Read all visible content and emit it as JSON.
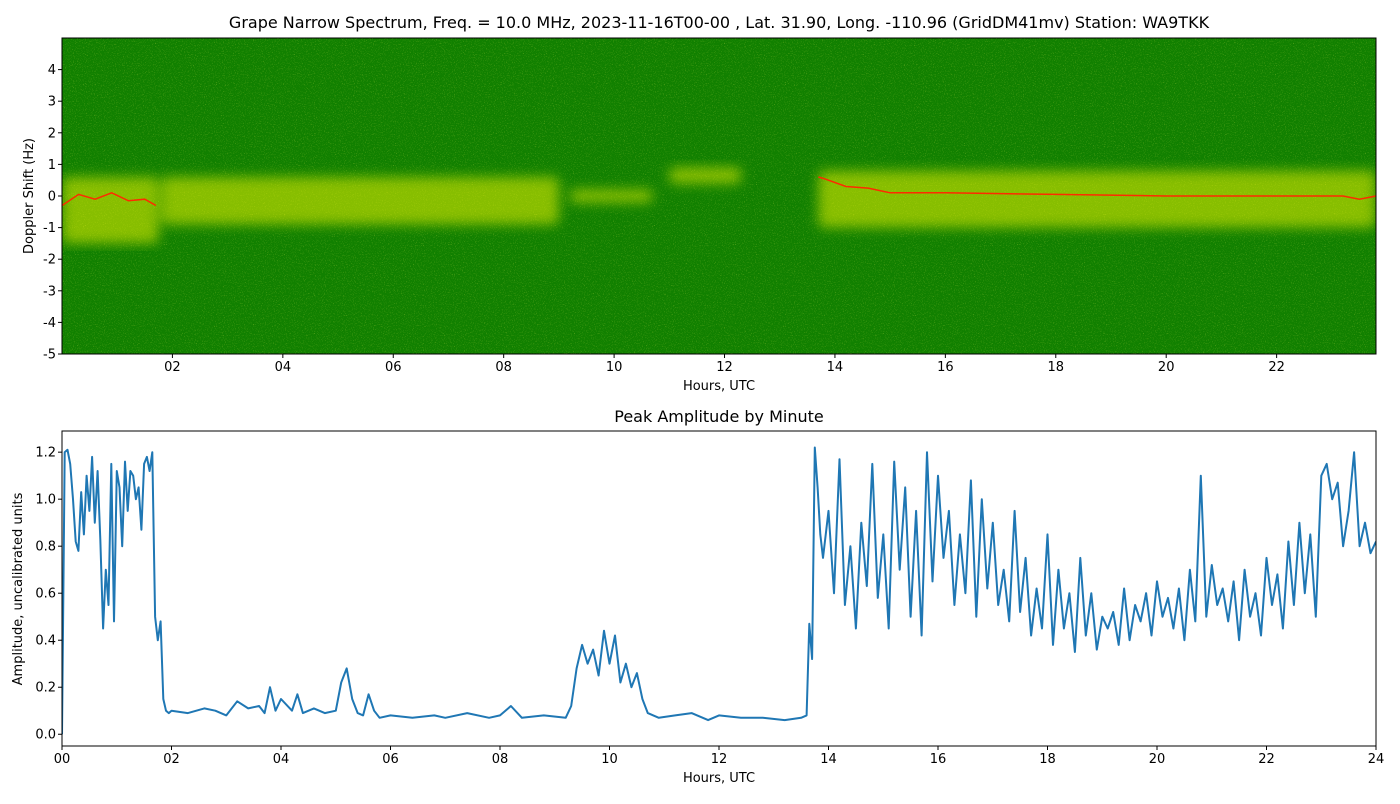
{
  "chart_data": [
    {
      "type": "heatmap",
      "title": "Grape Narrow Spectrum, Freq. = 10.0 MHz, 2023-11-16T00-00 , Lat.  31.90, Long. -110.96 (GridDM41mv) Station: WA9TKK",
      "xlabel": "Hours, UTC",
      "ylabel": "Doppler Shift (Hz)",
      "xlim": [
        0,
        23.8
      ],
      "ylim": [
        -5,
        5
      ],
      "x_ticks": [
        {
          "value": 2,
          "label": "02"
        },
        {
          "value": 4,
          "label": "04"
        },
        {
          "value": 6,
          "label": "06"
        },
        {
          "value": 8,
          "label": "08"
        },
        {
          "value": 10,
          "label": "10"
        },
        {
          "value": 12,
          "label": "12"
        },
        {
          "value": 14,
          "label": "14"
        },
        {
          "value": 16,
          "label": "16"
        },
        {
          "value": 18,
          "label": "18"
        },
        {
          "value": 20,
          "label": "20"
        },
        {
          "value": 22,
          "label": "22"
        }
      ],
      "y_ticks": [
        {
          "value": -5,
          "label": "-5"
        },
        {
          "value": -4,
          "label": "-4"
        },
        {
          "value": -3,
          "label": "-3"
        },
        {
          "value": -2,
          "label": "-2"
        },
        {
          "value": -1,
          "label": "-1"
        },
        {
          "value": 0,
          "label": "0"
        },
        {
          "value": 1,
          "label": "1"
        },
        {
          "value": 2,
          "label": "2"
        },
        {
          "value": 3,
          "label": "3"
        },
        {
          "value": 4,
          "label": "4"
        }
      ],
      "colors": {
        "background": "#118000",
        "signal": "#e8f000",
        "peak_trace": "#ff2a00"
      },
      "trace": {
        "x": [
          0.0,
          0.3,
          0.6,
          0.9,
          1.2,
          1.5,
          1.7,
          1.75,
          4.0,
          6.0,
          8.0,
          9.3,
          10.0,
          10.6,
          11.0,
          12.0,
          13.0,
          13.7,
          13.8,
          14.2,
          14.6,
          15.0,
          16.0,
          18.0,
          20.0,
          22.0,
          23.2,
          23.5,
          23.8
        ],
        "y": [
          -0.3,
          0.05,
          -0.1,
          0.1,
          -0.15,
          -0.1,
          -0.3,
          null,
          null,
          null,
          null,
          null,
          null,
          null,
          null,
          null,
          null,
          0.6,
          0.55,
          0.3,
          0.25,
          0.1,
          0.1,
          0.05,
          0.0,
          0.0,
          0.0,
          -0.1,
          0.0
        ]
      },
      "signal_regions": [
        {
          "x": [
            0.0,
            1.75
          ],
          "y": [
            -1.5,
            0.6
          ]
        },
        {
          "x": [
            1.8,
            9.0
          ],
          "y": [
            -0.9,
            0.6
          ]
        },
        {
          "x": [
            9.2,
            10.7
          ],
          "y": [
            -0.2,
            0.2
          ]
        },
        {
          "x": [
            11.0,
            12.3
          ],
          "y": [
            0.4,
            0.9
          ]
        },
        {
          "x": [
            13.7,
            23.8
          ],
          "y": [
            -1.0,
            0.8
          ]
        }
      ]
    },
    {
      "type": "line",
      "title": "Peak Amplitude by Minute",
      "xlabel": "Hours, UTC",
      "ylabel": "Amplitude, uncalibrated units",
      "xlim": [
        0,
        24
      ],
      "ylim": [
        -0.05,
        1.29
      ],
      "x_ticks": [
        {
          "value": 0,
          "label": "00"
        },
        {
          "value": 2,
          "label": "02"
        },
        {
          "value": 4,
          "label": "04"
        },
        {
          "value": 6,
          "label": "06"
        },
        {
          "value": 8,
          "label": "08"
        },
        {
          "value": 10,
          "label": "10"
        },
        {
          "value": 12,
          "label": "12"
        },
        {
          "value": 14,
          "label": "14"
        },
        {
          "value": 16,
          "label": "16"
        },
        {
          "value": 18,
          "label": "18"
        },
        {
          "value": 20,
          "label": "20"
        },
        {
          "value": 22,
          "label": "22"
        },
        {
          "value": 24,
          "label": "24"
        }
      ],
      "y_ticks": [
        {
          "value": 0.0,
          "label": "0.0"
        },
        {
          "value": 0.2,
          "label": "0.2"
        },
        {
          "value": 0.4,
          "label": "0.4"
        },
        {
          "value": 0.6,
          "label": "0.6"
        },
        {
          "value": 0.8,
          "label": "0.8"
        },
        {
          "value": 1.0,
          "label": "1.0"
        },
        {
          "value": 1.2,
          "label": "1.2"
        }
      ],
      "color": "#1f77b4",
      "series": [
        {
          "x": [
            0.0,
            0.05,
            0.1,
            0.15,
            0.2,
            0.25,
            0.3,
            0.35,
            0.4,
            0.45,
            0.5,
            0.55,
            0.6,
            0.65,
            0.7,
            0.75,
            0.8,
            0.85,
            0.9,
            0.95,
            1.0,
            1.05,
            1.1,
            1.15,
            1.2,
            1.25,
            1.3,
            1.35,
            1.4,
            1.45,
            1.5,
            1.55,
            1.6,
            1.65,
            1.7,
            1.75,
            1.8,
            1.85,
            1.9,
            1.95,
            2.0,
            2.3,
            2.6,
            2.8,
            3.0,
            3.2,
            3.4,
            3.6,
            3.7,
            3.8,
            3.9,
            4.0,
            4.2,
            4.3,
            4.4,
            4.6,
            4.8,
            5.0,
            5.1,
            5.2,
            5.3,
            5.4,
            5.5,
            5.6,
            5.7,
            5.8,
            6.0,
            6.4,
            6.8,
            7.0,
            7.4,
            7.8,
            8.0,
            8.2,
            8.4,
            8.8,
            9.2,
            9.3,
            9.4,
            9.5,
            9.6,
            9.7,
            9.8,
            9.9,
            10.0,
            10.1,
            10.2,
            10.3,
            10.4,
            10.5,
            10.6,
            10.7,
            10.9,
            11.2,
            11.5,
            11.8,
            12.0,
            12.4,
            12.8,
            13.2,
            13.5,
            13.6,
            13.65,
            13.7,
            13.75,
            13.8,
            13.85,
            13.9,
            14.0,
            14.1,
            14.2,
            14.3,
            14.4,
            14.5,
            14.6,
            14.7,
            14.8,
            14.9,
            15.0,
            15.1,
            15.2,
            15.3,
            15.4,
            15.5,
            15.6,
            15.7,
            15.8,
            15.9,
            16.0,
            16.1,
            16.2,
            16.3,
            16.4,
            16.5,
            16.6,
            16.7,
            16.8,
            16.9,
            17.0,
            17.1,
            17.2,
            17.3,
            17.4,
            17.5,
            17.6,
            17.7,
            17.8,
            17.9,
            18.0,
            18.1,
            18.2,
            18.3,
            18.4,
            18.5,
            18.6,
            18.7,
            18.8,
            18.9,
            19.0,
            19.1,
            19.2,
            19.3,
            19.4,
            19.5,
            19.6,
            19.7,
            19.8,
            19.9,
            20.0,
            20.1,
            20.2,
            20.3,
            20.4,
            20.5,
            20.6,
            20.7,
            20.8,
            20.9,
            21.0,
            21.1,
            21.2,
            21.3,
            21.4,
            21.5,
            21.6,
            21.7,
            21.8,
            21.9,
            22.0,
            22.1,
            22.2,
            22.3,
            22.4,
            22.5,
            22.6,
            22.7,
            22.8,
            22.9,
            23.0,
            23.1,
            23.2,
            23.3,
            23.4,
            23.5,
            23.6,
            23.7,
            23.8,
            23.9,
            24.0
          ],
          "y": [
            0.0,
            1.2,
            1.21,
            1.15,
            1.0,
            0.82,
            0.78,
            1.03,
            0.85,
            1.1,
            0.95,
            1.18,
            0.9,
            1.12,
            0.83,
            0.45,
            0.7,
            0.55,
            1.15,
            0.48,
            1.12,
            1.05,
            0.8,
            1.16,
            0.95,
            1.12,
            1.1,
            1.0,
            1.05,
            0.87,
            1.15,
            1.18,
            1.12,
            1.2,
            0.5,
            0.4,
            0.48,
            0.15,
            0.1,
            0.09,
            0.1,
            0.09,
            0.11,
            0.1,
            0.08,
            0.14,
            0.11,
            0.12,
            0.09,
            0.2,
            0.1,
            0.15,
            0.1,
            0.17,
            0.09,
            0.11,
            0.09,
            0.1,
            0.22,
            0.28,
            0.15,
            0.09,
            0.08,
            0.17,
            0.1,
            0.07,
            0.08,
            0.07,
            0.08,
            0.07,
            0.09,
            0.07,
            0.08,
            0.12,
            0.07,
            0.08,
            0.07,
            0.12,
            0.28,
            0.38,
            0.3,
            0.36,
            0.25,
            0.44,
            0.3,
            0.42,
            0.22,
            0.3,
            0.2,
            0.26,
            0.15,
            0.09,
            0.07,
            0.08,
            0.09,
            0.06,
            0.08,
            0.07,
            0.07,
            0.06,
            0.07,
            0.08,
            0.47,
            0.32,
            1.22,
            1.05,
            0.85,
            0.75,
            0.95,
            0.6,
            1.17,
            0.55,
            0.8,
            0.45,
            0.9,
            0.63,
            1.15,
            0.58,
            0.85,
            0.45,
            1.16,
            0.7,
            1.05,
            0.5,
            0.95,
            0.42,
            1.2,
            0.65,
            1.1,
            0.75,
            0.95,
            0.55,
            0.85,
            0.6,
            1.08,
            0.5,
            1.0,
            0.62,
            0.9,
            0.55,
            0.7,
            0.48,
            0.95,
            0.52,
            0.75,
            0.42,
            0.62,
            0.45,
            0.85,
            0.38,
            0.7,
            0.45,
            0.6,
            0.35,
            0.75,
            0.42,
            0.6,
            0.36,
            0.5,
            0.45,
            0.52,
            0.38,
            0.62,
            0.4,
            0.55,
            0.48,
            0.6,
            0.42,
            0.65,
            0.5,
            0.58,
            0.45,
            0.62,
            0.4,
            0.7,
            0.48,
            1.1,
            0.5,
            0.72,
            0.55,
            0.62,
            0.48,
            0.65,
            0.4,
            0.7,
            0.5,
            0.6,
            0.42,
            0.75,
            0.55,
            0.68,
            0.45,
            0.82,
            0.55,
            0.9,
            0.6,
            0.85,
            0.5,
            1.1,
            1.15,
            1.0,
            1.07,
            0.8,
            0.95,
            1.2,
            0.8,
            0.9,
            0.77,
            0.82
          ]
        }
      ]
    }
  ]
}
